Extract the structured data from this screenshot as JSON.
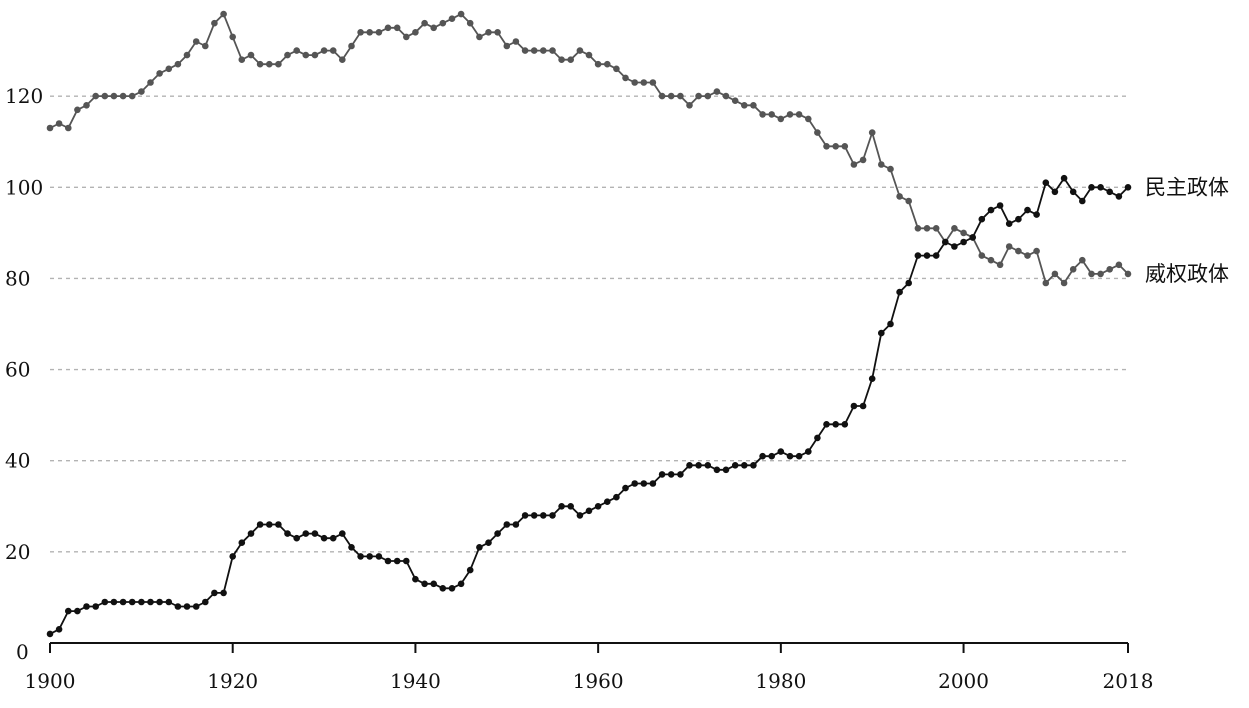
{
  "chart_data": {
    "type": "line",
    "title": "",
    "xlabel": "",
    "ylabel": "",
    "xlim": [
      1900,
      2018
    ],
    "ylim": [
      0,
      140
    ],
    "grid": true,
    "x_ticks": [
      "1900",
      "1920",
      "1940",
      "1960",
      "1980",
      "2000",
      "2018"
    ],
    "y_ticks": [
      "0",
      "20",
      "40",
      "60",
      "80",
      "100",
      "120"
    ],
    "series": [
      {
        "name": "民主政体",
        "color": "#111111",
        "x": [
          1900,
          1901,
          1902,
          1903,
          1904,
          1905,
          1906,
          1907,
          1908,
          1909,
          1910,
          1911,
          1912,
          1913,
          1914,
          1915,
          1916,
          1917,
          1918,
          1919,
          1920,
          1921,
          1922,
          1923,
          1924,
          1925,
          1926,
          1927,
          1928,
          1929,
          1930,
          1931,
          1932,
          1933,
          1934,
          1935,
          1936,
          1937,
          1938,
          1939,
          1940,
          1941,
          1942,
          1943,
          1944,
          1945,
          1946,
          1947,
          1948,
          1949,
          1950,
          1951,
          1952,
          1953,
          1954,
          1955,
          1956,
          1957,
          1958,
          1959,
          1960,
          1961,
          1962,
          1963,
          1964,
          1965,
          1966,
          1967,
          1968,
          1969,
          1970,
          1971,
          1972,
          1973,
          1974,
          1975,
          1976,
          1977,
          1978,
          1979,
          1980,
          1981,
          1982,
          1983,
          1984,
          1985,
          1986,
          1987,
          1988,
          1989,
          1990,
          1991,
          1992,
          1993,
          1994,
          1995,
          1996,
          1997,
          1998,
          1999,
          2000,
          2001,
          2002,
          2003,
          2004,
          2005,
          2006,
          2007,
          2008,
          2009,
          2010,
          2011,
          2012,
          2013,
          2014,
          2015,
          2016,
          2017,
          2018
        ],
        "values": [
          2,
          3,
          7,
          7,
          8,
          8,
          9,
          9,
          9,
          9,
          9,
          9,
          9,
          9,
          8,
          8,
          8,
          9,
          11,
          11,
          19,
          22,
          24,
          26,
          26,
          26,
          24,
          23,
          24,
          24,
          23,
          23,
          24,
          21,
          19,
          19,
          19,
          18,
          18,
          18,
          14,
          13,
          13,
          12,
          12,
          13,
          16,
          21,
          22,
          24,
          26,
          26,
          28,
          28,
          28,
          28,
          30,
          30,
          28,
          29,
          30,
          31,
          32,
          34,
          35,
          35,
          35,
          37,
          37,
          37,
          39,
          39,
          39,
          38,
          38,
          39,
          39,
          39,
          41,
          41,
          42,
          41,
          41,
          42,
          45,
          48,
          48,
          48,
          52,
          52,
          58,
          68,
          70,
          77,
          79,
          85,
          85,
          85,
          88,
          87,
          88,
          89,
          93,
          95,
          96,
          92,
          93,
          95,
          94,
          101,
          99,
          102,
          99,
          97,
          100,
          100,
          99,
          98,
          100
        ]
      },
      {
        "name": "威权政体",
        "color": "#555555",
        "x": [
          1900,
          1901,
          1902,
          1903,
          1904,
          1905,
          1906,
          1907,
          1908,
          1909,
          1910,
          1911,
          1912,
          1913,
          1914,
          1915,
          1916,
          1917,
          1918,
          1919,
          1920,
          1921,
          1922,
          1923,
          1924,
          1925,
          1926,
          1927,
          1928,
          1929,
          1930,
          1931,
          1932,
          1933,
          1934,
          1935,
          1936,
          1937,
          1938,
          1939,
          1940,
          1941,
          1942,
          1943,
          1944,
          1945,
          1946,
          1947,
          1948,
          1949,
          1950,
          1951,
          1952,
          1953,
          1954,
          1955,
          1956,
          1957,
          1958,
          1959,
          1960,
          1961,
          1962,
          1963,
          1964,
          1965,
          1966,
          1967,
          1968,
          1969,
          1970,
          1971,
          1972,
          1973,
          1974,
          1975,
          1976,
          1977,
          1978,
          1979,
          1980,
          1981,
          1982,
          1983,
          1984,
          1985,
          1986,
          1987,
          1988,
          1989,
          1990,
          1991,
          1992,
          1993,
          1994,
          1995,
          1996,
          1997,
          1998,
          1999,
          2000,
          2001,
          2002,
          2003,
          2004,
          2005,
          2006,
          2007,
          2008,
          2009,
          2010,
          2011,
          2012,
          2013,
          2014,
          2015,
          2016,
          2017,
          2018
        ],
        "values": [
          113,
          114,
          113,
          117,
          118,
          120,
          120,
          120,
          120,
          120,
          121,
          123,
          125,
          126,
          127,
          129,
          132,
          131,
          136,
          138,
          133,
          128,
          129,
          127,
          127,
          127,
          129,
          130,
          129,
          129,
          130,
          130,
          128,
          131,
          134,
          134,
          134,
          135,
          135,
          133,
          134,
          136,
          135,
          136,
          137,
          138,
          136,
          133,
          134,
          134,
          131,
          132,
          130,
          130,
          130,
          130,
          128,
          128,
          130,
          129,
          127,
          127,
          126,
          124,
          123,
          123,
          123,
          120,
          120,
          120,
          118,
          120,
          120,
          121,
          120,
          119,
          118,
          118,
          116,
          116,
          115,
          116,
          116,
          115,
          112,
          109,
          109,
          109,
          105,
          106,
          112,
          105,
          104,
          98,
          97,
          91,
          91,
          91,
          88,
          91,
          90,
          89,
          85,
          84,
          83,
          87,
          86,
          85,
          86,
          79,
          81,
          79,
          82,
          84,
          81,
          81,
          82,
          83,
          81
        ]
      }
    ]
  }
}
